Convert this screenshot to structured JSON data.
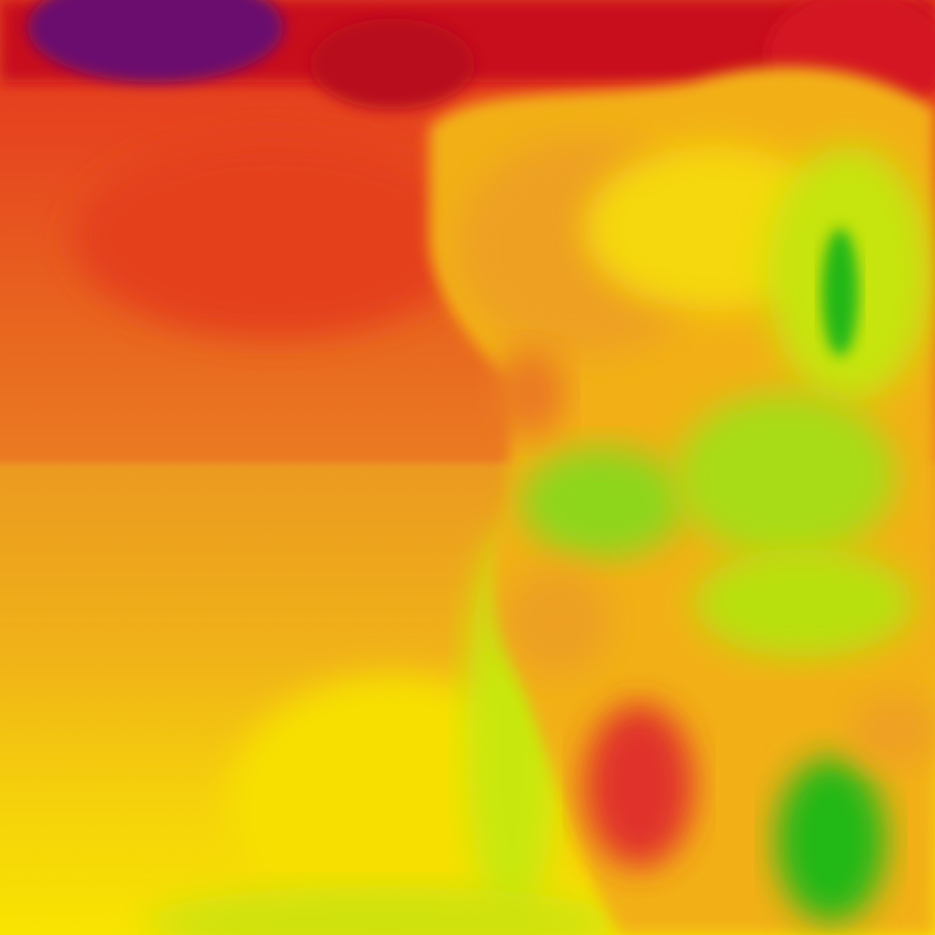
{
  "map": {
    "kind": "heatmap-tile",
    "palette": {
      "very_hot": "#6a0a6e",
      "hot_dark": "#b8081c",
      "hot": "#e0202a",
      "warm_red": "#e6461f",
      "orange": "#ea7a22",
      "amber": "#eda41f",
      "yellow_orange": "#f3c80e",
      "yellow": "#faea00",
      "yellow_green": "#cbe80a",
      "green": "#8ed61a",
      "deep_green": "#22b818"
    }
  }
}
